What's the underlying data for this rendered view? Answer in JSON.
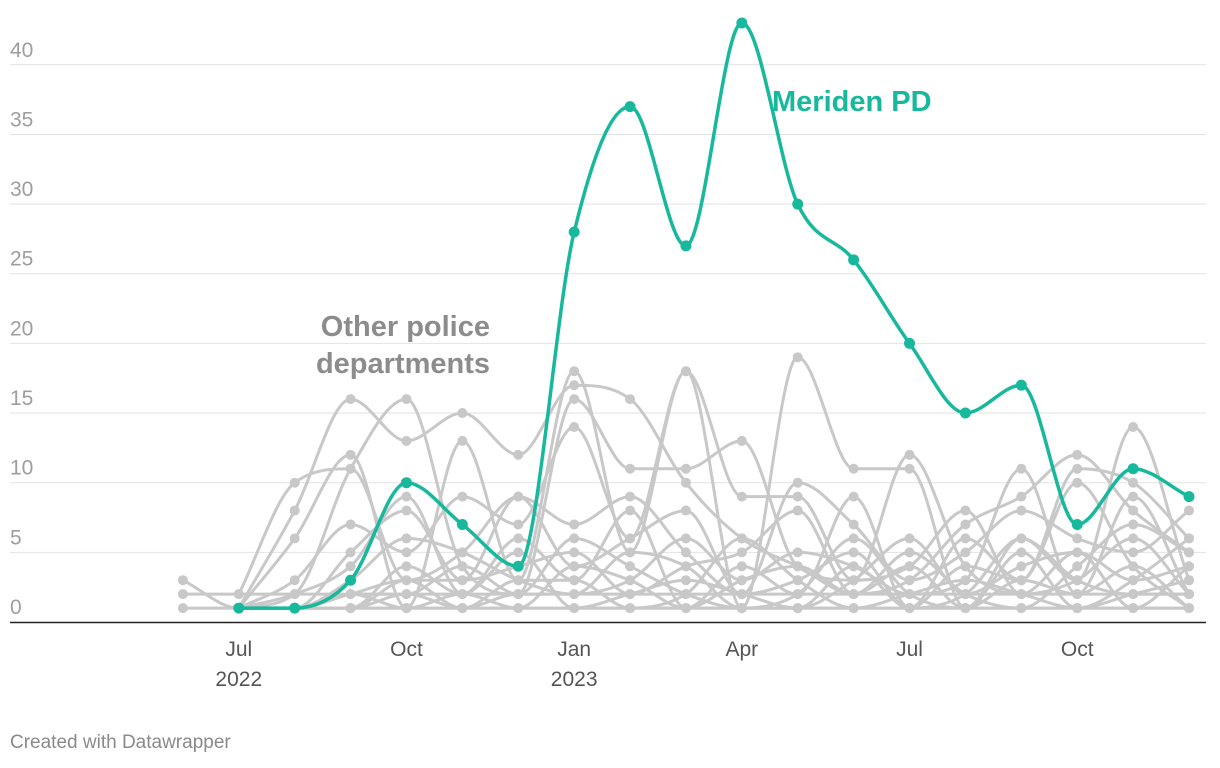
{
  "chart_data": {
    "type": "line",
    "ylim": [
      0,
      43
    ],
    "y_ticks": [
      0,
      5,
      10,
      15,
      20,
      25,
      30,
      35,
      40
    ],
    "x_start": "2022-05",
    "x_end": "2023-12",
    "x_ticks": [
      {
        "month": "2022-07",
        "label": "Jul",
        "year": "2022"
      },
      {
        "month": "2022-10",
        "label": "Oct",
        "year": ""
      },
      {
        "month": "2023-01",
        "label": "Jan",
        "year": "2023"
      },
      {
        "month": "2023-04",
        "label": "Apr",
        "year": ""
      },
      {
        "month": "2023-07",
        "label": "Jul",
        "year": ""
      },
      {
        "month": "2023-10",
        "label": "Oct",
        "year": ""
      }
    ],
    "annotations": [
      {
        "text": "Meriden PD",
        "series": "Meriden PD"
      },
      {
        "text": "Other police departments",
        "lines": [
          "Other police",
          "departments"
        ],
        "series": "other"
      }
    ],
    "highlight_color": "#17b89c",
    "other_color": "#c8c8c8",
    "months": [
      "2022-06",
      "2022-07",
      "2022-08",
      "2022-09",
      "2022-10",
      "2022-11",
      "2022-12",
      "2023-01",
      "2023-02",
      "2023-03",
      "2023-04",
      "2023-05",
      "2023-06",
      "2023-07",
      "2023-08",
      "2023-09",
      "2023-10",
      "2023-11",
      "2023-12"
    ],
    "highlight": {
      "name": "Meriden PD",
      "values": [
        null,
        1,
        1,
        3,
        10,
        7,
        4,
        28,
        37,
        27,
        43,
        30,
        26,
        20,
        15,
        17,
        7,
        11,
        9
      ]
    },
    "other_series": [
      {
        "values": [
          3,
          1,
          1,
          1,
          1,
          1,
          1,
          1,
          1,
          1,
          1,
          1,
          1,
          1,
          1,
          1,
          1,
          1,
          1
        ]
      },
      {
        "values": [
          1,
          1,
          1,
          1,
          1,
          1,
          1,
          1,
          1,
          1,
          1,
          1,
          1,
          1,
          1,
          1,
          1,
          1,
          1
        ]
      },
      {
        "values": [
          2,
          2,
          2,
          2,
          2,
          2,
          2,
          2,
          2,
          2,
          2,
          2,
          2,
          2,
          2,
          2,
          2,
          2,
          2
        ]
      },
      {
        "values": [
          null,
          2,
          10,
          11,
          3,
          5,
          9,
          4,
          6,
          8,
          2,
          3,
          5,
          1,
          6,
          3,
          11,
          10,
          6
        ]
      },
      {
        "values": [
          null,
          1,
          8,
          16,
          13,
          15,
          12,
          17,
          16,
          10,
          6,
          4,
          2,
          3,
          7,
          9,
          12,
          8,
          5
        ]
      },
      {
        "values": [
          null,
          1,
          6,
          12,
          1,
          13,
          3,
          18,
          5,
          18,
          1,
          19,
          11,
          11,
          1,
          6,
          3,
          14,
          3
        ]
      },
      {
        "values": [
          null,
          1,
          2,
          11,
          16,
          4,
          2,
          16,
          11,
          11,
          13,
          4,
          3,
          12,
          4,
          2,
          3,
          6,
          2
        ]
      },
      {
        "values": [
          null,
          1,
          3,
          7,
          5,
          9,
          7,
          14,
          6,
          18,
          9,
          9,
          3,
          4,
          8,
          2,
          5,
          3,
          4
        ]
      },
      {
        "values": [
          null,
          1,
          1,
          5,
          8,
          3,
          9,
          7,
          9,
          5,
          2,
          10,
          7,
          3,
          5,
          8,
          6,
          5,
          8
        ]
      },
      {
        "values": [
          null,
          1,
          2,
          4,
          9,
          2,
          6,
          3,
          8,
          1,
          4,
          2,
          9,
          1,
          4,
          3,
          10,
          4,
          1
        ]
      },
      {
        "values": [
          null,
          1,
          1,
          3,
          6,
          5,
          3,
          2,
          3,
          6,
          3,
          5,
          4,
          2,
          3,
          11,
          2,
          9,
          2
        ]
      },
      {
        "values": [
          null,
          1,
          1,
          2,
          3,
          3,
          4,
          5,
          2,
          4,
          5,
          8,
          2,
          5,
          2,
          1,
          4,
          7,
          5
        ]
      },
      {
        "values": [
          null,
          1,
          1,
          2,
          2,
          4,
          2,
          6,
          4,
          2,
          1,
          2,
          6,
          2,
          1,
          5,
          1,
          2,
          3
        ]
      },
      {
        "values": [
          null,
          1,
          1,
          1,
          4,
          2,
          5,
          1,
          2,
          3,
          2,
          1,
          3,
          6,
          2,
          4,
          5,
          1,
          4
        ]
      },
      {
        "values": [
          null,
          1,
          1,
          1,
          2,
          1,
          3,
          3,
          1,
          2,
          6,
          3,
          1,
          2,
          3,
          2,
          1,
          3,
          6
        ]
      },
      {
        "values": [
          null,
          1,
          1,
          2,
          1,
          2,
          1,
          4,
          3,
          1,
          3,
          4,
          2,
          4,
          1,
          3,
          2,
          4,
          1
        ]
      },
      {
        "values": [
          null,
          1,
          1,
          1,
          3,
          1,
          2,
          2,
          5,
          4,
          1,
          1,
          4,
          1,
          2,
          6,
          3,
          2,
          2
        ]
      }
    ]
  },
  "footer": {
    "credit": "Created with Datawrapper"
  }
}
